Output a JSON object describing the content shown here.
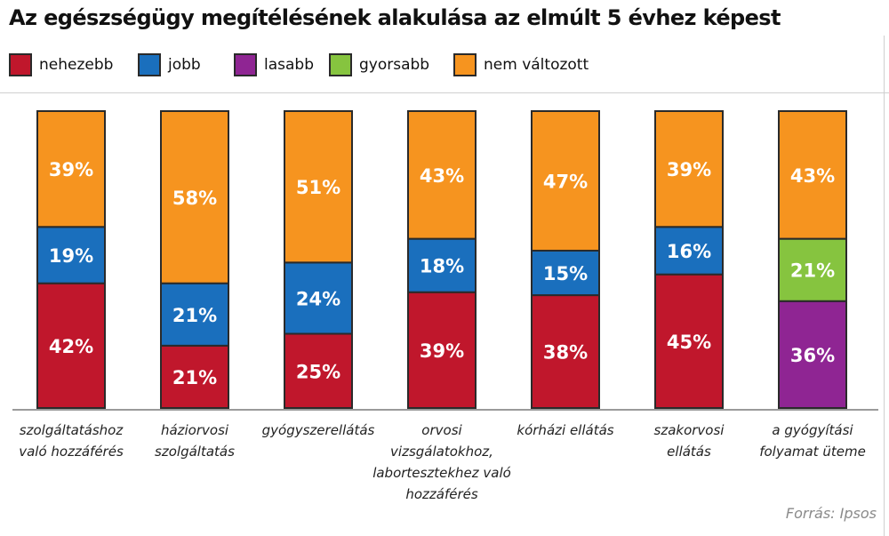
{
  "chart_data": {
    "type": "bar",
    "stacked": true,
    "title": "Az egészségügy megítélésének  alakulása az elmúlt 5 évhez képest",
    "source": "Forrás: Ipsos",
    "legend_position": "top-left",
    "grid": false,
    "series_defs": [
      {
        "key": "nehezebb",
        "name": "nehezebb",
        "color": "#c0172c"
      },
      {
        "key": "jobb",
        "name": "jobb",
        "color": "#1a6fbd"
      },
      {
        "key": "lasabb",
        "name": "lasabb",
        "color": "#8f2593"
      },
      {
        "key": "gyorsabb",
        "name": "gyorsabb",
        "color": "#86c43f"
      },
      {
        "key": "nem_valtozott",
        "name": "nem változott",
        "color": "#f6941f"
      }
    ],
    "categories": [
      {
        "lines": [
          "szolgáltatáshoz",
          "való hozzáférés"
        ],
        "segments": [
          {
            "s": "nehezebb",
            "v": 42
          },
          {
            "s": "jobb",
            "v": 19
          },
          {
            "s": "nem_valtozott",
            "v": 39
          }
        ]
      },
      {
        "lines": [
          "háziorvosi",
          "szolgáltatás"
        ],
        "segments": [
          {
            "s": "nehezebb",
            "v": 21
          },
          {
            "s": "jobb",
            "v": 21
          },
          {
            "s": "nem_valtozott",
            "v": 58
          }
        ]
      },
      {
        "lines": [
          "gyógyszerellátás"
        ],
        "segments": [
          {
            "s": "nehezebb",
            "v": 25
          },
          {
            "s": "jobb",
            "v": 24
          },
          {
            "s": "nem_valtozott",
            "v": 51
          }
        ]
      },
      {
        "lines": [
          "orvosi",
          "vizsgálatokhoz,",
          "labortesztekhez való",
          "hozzáférés"
        ],
        "segments": [
          {
            "s": "nehezebb",
            "v": 39
          },
          {
            "s": "jobb",
            "v": 18
          },
          {
            "s": "nem_valtozott",
            "v": 43
          }
        ]
      },
      {
        "lines": [
          "kórházi ellátás"
        ],
        "segments": [
          {
            "s": "nehezebb",
            "v": 38
          },
          {
            "s": "jobb",
            "v": 15
          },
          {
            "s": "nem_valtozott",
            "v": 47
          }
        ]
      },
      {
        "lines": [
          "szakorvosi",
          "ellátás"
        ],
        "segments": [
          {
            "s": "nehezebb",
            "v": 45
          },
          {
            "s": "jobb",
            "v": 16
          },
          {
            "s": "nem_valtozott",
            "v": 39
          }
        ]
      },
      {
        "lines": [
          "a gyógyítási",
          "folyamat üteme"
        ],
        "segments": [
          {
            "s": "lasabb",
            "v": 36
          },
          {
            "s": "gyorsabb",
            "v": 21
          },
          {
            "s": "nem_valtozott",
            "v": 43
          }
        ]
      }
    ],
    "ylim": [
      0,
      100
    ],
    "value_suffix": "%"
  }
}
